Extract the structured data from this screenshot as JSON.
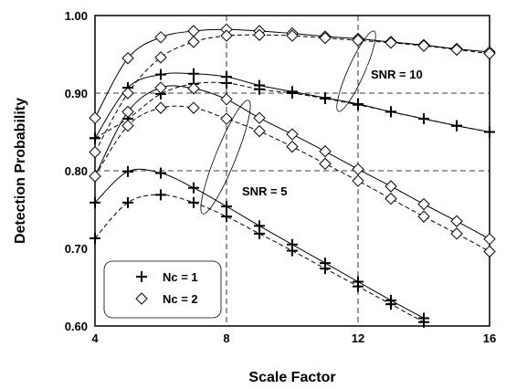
{
  "chart_data": {
    "type": "line",
    "xlabel": "Scale Factor",
    "ylabel": "Detection Probability",
    "xlim": [
      4,
      16
    ],
    "ylim": [
      0.6,
      1.0
    ],
    "xticks": [
      "4",
      "8",
      "12",
      "16"
    ],
    "yticks": [
      "0.60",
      "0.70",
      "0.80",
      "0.90",
      "1.00"
    ],
    "grid": "dashed at x=8, x=12 and y=0.80, y=0.90, y=1.00",
    "legend": {
      "position": "bottom-left",
      "entries": [
        {
          "label": "Nc = 1",
          "marker": "plus"
        },
        {
          "label": "Nc = 2",
          "marker": "diamond"
        }
      ]
    },
    "annotations": [
      {
        "text": "SNR = 10"
      },
      {
        "text": "SNR = 5"
      }
    ],
    "series": [
      {
        "snr": "SNR = 10",
        "nc": "Nc = 1",
        "style": "solid",
        "marker": "plus",
        "x": [
          4,
          5,
          6,
          7,
          8,
          9,
          10,
          11,
          12,
          13,
          14,
          15,
          16
        ],
        "y": [
          0.842,
          0.907,
          0.924,
          0.925,
          0.921,
          0.91,
          0.902,
          0.894,
          0.886,
          0.876,
          0.867,
          0.858,
          0.85
        ]
      },
      {
        "snr": "SNR = 10",
        "nc": "Nc = 1",
        "style": "dashed",
        "marker": "plus",
        "x": [
          4,
          5,
          6,
          7,
          8,
          9,
          10,
          11,
          12,
          13,
          14,
          15,
          16
        ],
        "y": [
          0.842,
          0.867,
          0.899,
          0.912,
          0.913,
          0.905,
          0.9,
          0.893,
          0.885,
          0.876,
          0.867,
          0.858,
          0.85
        ]
      },
      {
        "snr": "SNR = 10",
        "nc": "Nc = 2",
        "style": "solid",
        "marker": "diamond",
        "x": [
          4,
          5,
          6,
          7,
          8,
          9,
          10,
          11,
          12,
          13,
          14,
          15,
          16
        ],
        "y": [
          0.868,
          0.945,
          0.972,
          0.98,
          0.982,
          0.98,
          0.977,
          0.973,
          0.97,
          0.966,
          0.962,
          0.957,
          0.953
        ]
      },
      {
        "snr": "SNR = 10",
        "nc": "Nc = 2",
        "style": "dashed",
        "marker": "diamond",
        "x": [
          4,
          5,
          6,
          7,
          8,
          9,
          10,
          11,
          12,
          13,
          14,
          15,
          16
        ],
        "y": [
          0.824,
          0.9,
          0.946,
          0.966,
          0.974,
          0.975,
          0.974,
          0.971,
          0.968,
          0.965,
          0.961,
          0.956,
          0.951
        ]
      },
      {
        "snr": "SNR = 5",
        "nc": "Nc = 1",
        "style": "solid",
        "marker": "plus",
        "x": [
          4,
          5,
          6,
          7,
          8,
          9,
          10,
          11,
          12,
          13,
          14
        ],
        "y": [
          0.759,
          0.799,
          0.797,
          0.778,
          0.754,
          0.729,
          0.705,
          0.681,
          0.657,
          0.633,
          0.61
        ]
      },
      {
        "snr": "SNR = 5",
        "nc": "Nc = 1",
        "style": "dashed",
        "marker": "plus",
        "x": [
          4,
          5,
          6,
          7,
          8,
          9,
          10,
          11,
          12,
          13,
          14
        ],
        "y": [
          0.713,
          0.759,
          0.769,
          0.759,
          0.741,
          0.719,
          0.697,
          0.674,
          0.651,
          0.628,
          0.605
        ]
      },
      {
        "snr": "SNR = 5",
        "nc": "Nc = 2",
        "style": "solid",
        "marker": "diamond",
        "x": [
          4,
          5,
          6,
          7,
          8,
          9,
          10,
          11,
          12,
          13,
          14,
          15,
          16
        ],
        "y": [
          0.793,
          0.876,
          0.907,
          0.906,
          0.892,
          0.868,
          0.847,
          0.825,
          0.802,
          0.78,
          0.757,
          0.735,
          0.712
        ]
      },
      {
        "snr": "SNR = 5",
        "nc": "Nc = 2",
        "style": "dashed",
        "marker": "diamond",
        "x": [
          4,
          5,
          6,
          7,
          8,
          9,
          10,
          11,
          12,
          13,
          14,
          15,
          16
        ],
        "y": [
          0.793,
          0.858,
          0.881,
          0.881,
          0.867,
          0.851,
          0.831,
          0.809,
          0.787,
          0.764,
          0.741,
          0.719,
          0.696
        ]
      }
    ]
  }
}
